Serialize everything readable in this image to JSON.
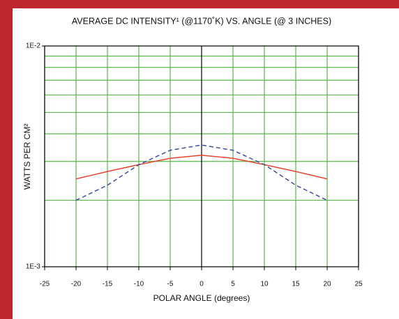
{
  "chart_data": {
    "type": "line",
    "title": "AVERAGE DC INTENSITY¹ (@1170˚K) VS. ANGLE (@ 3 INCHES)",
    "x_label": "POLAR ANGLE (degrees)",
    "y_label": "WATTS PER CM²",
    "x": [
      -20,
      -15,
      -10,
      -5,
      0,
      5,
      10,
      15,
      20
    ],
    "series": [
      {
        "color": "#e8432e",
        "style": "solid",
        "values": [
          0.0025,
          0.0027,
          0.0029,
          0.0031,
          0.0032,
          0.0031,
          0.0029,
          0.0027,
          0.0025
        ]
      },
      {
        "color": "#3a4fa0",
        "style": "dashed",
        "values": [
          0.002,
          0.00234,
          0.0029,
          0.00337,
          0.00356,
          0.00337,
          0.0029,
          0.00234,
          0.002
        ]
      }
    ],
    "xlim": [
      -25,
      25
    ],
    "xticks": [
      -25,
      -20,
      -15,
      -10,
      -5,
      0,
      5,
      10,
      15,
      20,
      25
    ],
    "ylim": [
      0.001,
      0.01
    ],
    "yticks": [
      {
        "value": 0.001,
        "label": "1E-3"
      },
      {
        "value": 0.01,
        "label": "1E-2"
      }
    ],
    "yminor": [
      0.002,
      0.003,
      0.004,
      0.005,
      0.006,
      0.007,
      0.008,
      0.009
    ],
    "log_y": true,
    "grid": true,
    "grid_color": "#5ab54a"
  }
}
